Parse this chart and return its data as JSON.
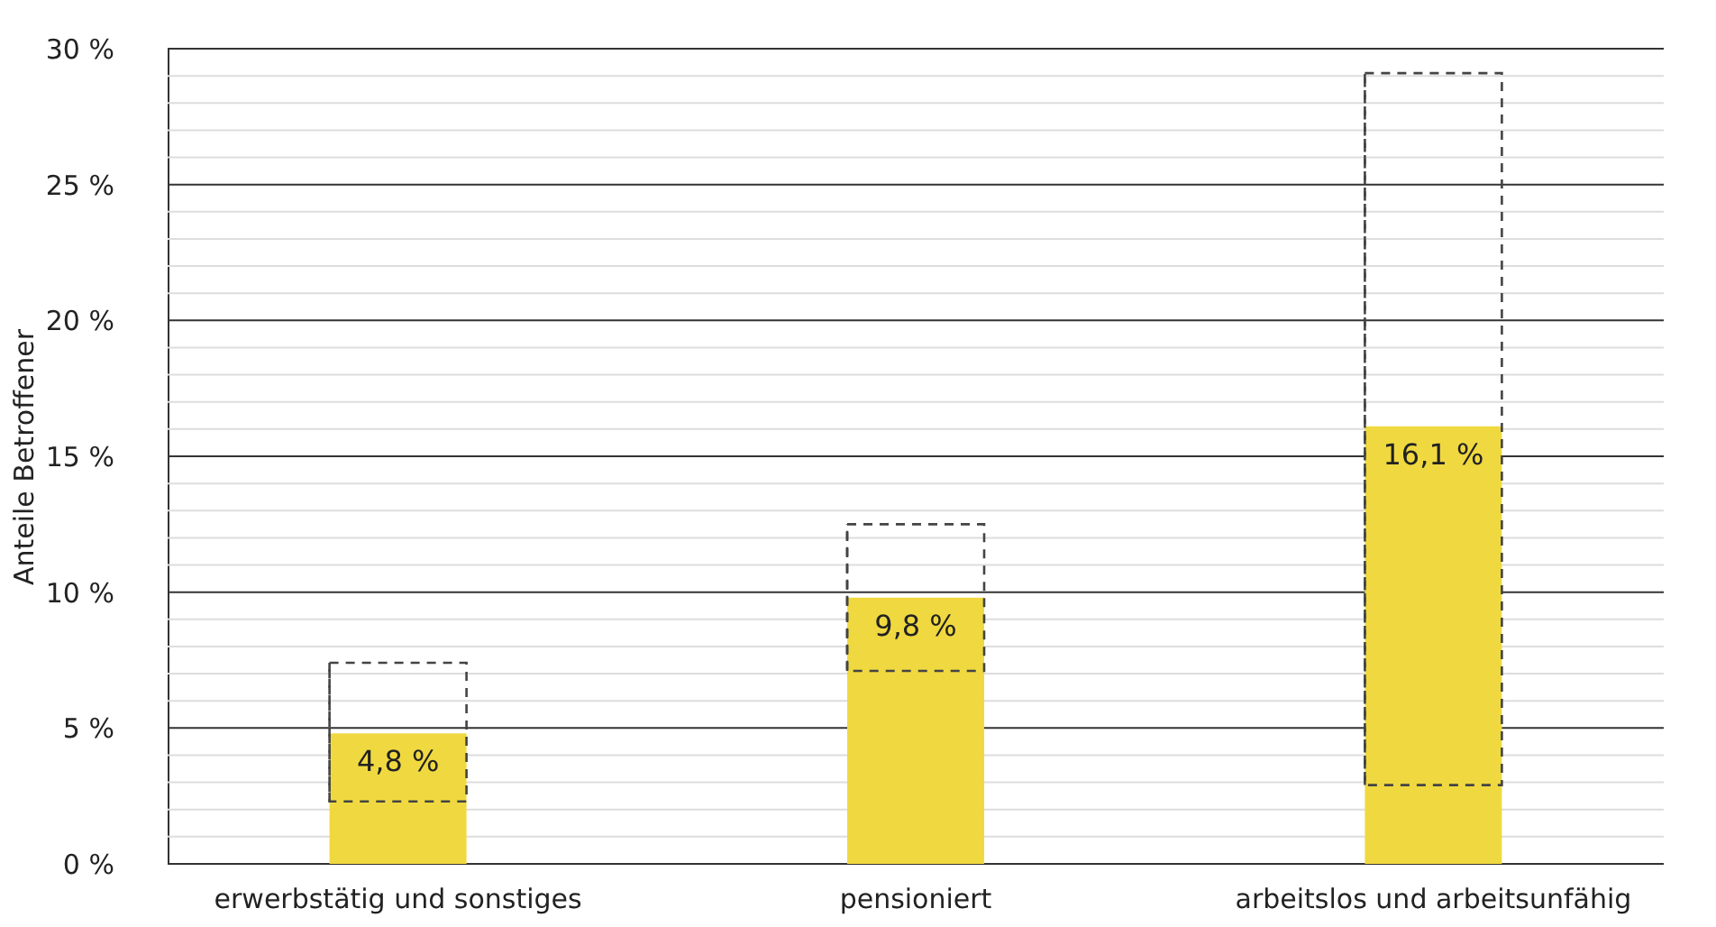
{
  "chart_data": {
    "type": "bar",
    "ylabel": "Anteile Betroffener",
    "categories": [
      "erwerbstätig und sonstiges",
      "pensioniert",
      "arbeitslos und arbeitsunfähig"
    ],
    "values": [
      4.8,
      9.8,
      16.1
    ],
    "color": "#f0d940",
    "value_labels": [
      "4,8 %",
      "9,8 %",
      "16,1 %"
    ],
    "errors": [
      [
        2.3,
        7.4
      ],
      [
        7.1,
        12.5
      ],
      [
        2.9,
        29.1
      ]
    ],
    "ylim": [
      0,
      30
    ],
    "yticks": [
      {
        "value": 0,
        "label": "0 %"
      },
      {
        "value": 1,
        "label": null
      },
      {
        "value": 2,
        "label": null
      },
      {
        "value": 3,
        "label": null
      },
      {
        "value": 4,
        "label": null
      },
      {
        "value": 5,
        "label": "5 %"
      },
      {
        "value": 6,
        "label": null
      },
      {
        "value": 7,
        "label": null
      },
      {
        "value": 8,
        "label": null
      },
      {
        "value": 9,
        "label": null
      },
      {
        "value": 10,
        "label": "10 %"
      },
      {
        "value": 11,
        "label": null
      },
      {
        "value": 12,
        "label": null
      },
      {
        "value": 13,
        "label": null
      },
      {
        "value": 14,
        "label": null
      },
      {
        "value": 15,
        "label": "15 %"
      },
      {
        "value": 16,
        "label": null
      },
      {
        "value": 17,
        "label": null
      },
      {
        "value": 18,
        "label": null
      },
      {
        "value": 19,
        "label": null
      },
      {
        "value": 20,
        "label": "20 %"
      },
      {
        "value": 21,
        "label": null
      },
      {
        "value": 22,
        "label": null
      },
      {
        "value": 23,
        "label": null
      },
      {
        "value": 24,
        "label": null
      },
      {
        "value": 25,
        "label": "25 %"
      },
      {
        "value": 26,
        "label": null
      },
      {
        "value": 27,
        "label": null
      },
      {
        "value": 28,
        "label": null
      },
      {
        "value": 29,
        "label": null
      },
      {
        "value": 30,
        "label": "30 %"
      }
    ],
    "grid": "y"
  }
}
